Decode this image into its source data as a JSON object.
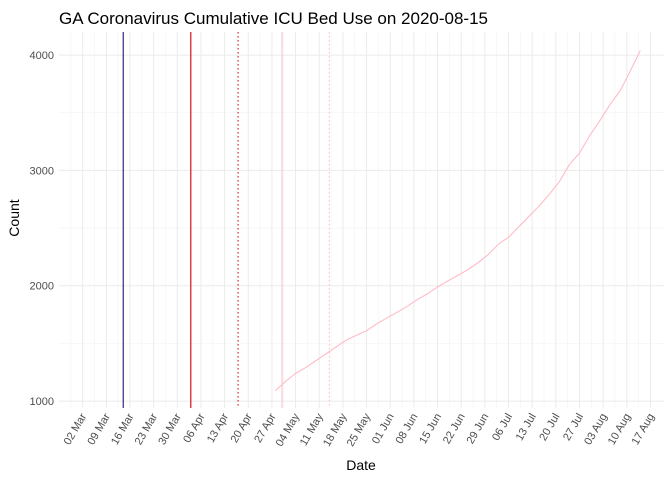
{
  "chart_data": {
    "type": "line",
    "title": "GA Coronavirus Cumulative ICU Bed Use on 2020-08-15",
    "xlabel": "Date",
    "ylabel": "Count",
    "xlim": [
      "2020-02-24",
      "2020-08-21"
    ],
    "ylim": [
      940,
      4200
    ],
    "x_ticks": [
      {
        "date": "2020-03-02",
        "label": "02 Mar"
      },
      {
        "date": "2020-03-09",
        "label": "09 Mar"
      },
      {
        "date": "2020-03-16",
        "label": "16 Mar"
      },
      {
        "date": "2020-03-23",
        "label": "23 Mar"
      },
      {
        "date": "2020-03-30",
        "label": "30 Mar"
      },
      {
        "date": "2020-04-06",
        "label": "06 Apr"
      },
      {
        "date": "2020-04-13",
        "label": "13 Apr"
      },
      {
        "date": "2020-04-20",
        "label": "20 Apr"
      },
      {
        "date": "2020-04-27",
        "label": "27 Apr"
      },
      {
        "date": "2020-05-04",
        "label": "04 May"
      },
      {
        "date": "2020-05-11",
        "label": "11 May"
      },
      {
        "date": "2020-05-18",
        "label": "18 May"
      },
      {
        "date": "2020-05-25",
        "label": "25 May"
      },
      {
        "date": "2020-06-01",
        "label": "01 Jun"
      },
      {
        "date": "2020-06-08",
        "label": "08 Jun"
      },
      {
        "date": "2020-06-15",
        "label": "15 Jun"
      },
      {
        "date": "2020-06-22",
        "label": "22 Jun"
      },
      {
        "date": "2020-06-29",
        "label": "29 Jun"
      },
      {
        "date": "2020-07-06",
        "label": "06 Jul"
      },
      {
        "date": "2020-07-13",
        "label": "13 Jul"
      },
      {
        "date": "2020-07-20",
        "label": "20 Jul"
      },
      {
        "date": "2020-07-27",
        "label": "27 Jul"
      },
      {
        "date": "2020-08-03",
        "label": "03 Aug"
      },
      {
        "date": "2020-08-10",
        "label": "10 Aug"
      },
      {
        "date": "2020-08-17",
        "label": "17 Aug"
      }
    ],
    "y_ticks": [
      1000,
      2000,
      3000,
      4000
    ],
    "grid": true,
    "vlines": [
      {
        "date": "2020-03-14",
        "color": "#191970",
        "style": "solid"
      },
      {
        "date": "2020-04-03",
        "color": "#cc0000",
        "style": "solid"
      },
      {
        "date": "2020-04-17",
        "color": "#cc2222",
        "style": "dotted"
      },
      {
        "date": "2020-04-30",
        "color": "#ffc0cb",
        "style": "solid"
      },
      {
        "date": "2020-05-14",
        "color": "#ffc0cb",
        "style": "dotted"
      }
    ],
    "series": [
      {
        "color": "#ffb6c1",
        "x": [
          "2020-04-28",
          "2020-05-01",
          "2020-05-04",
          "2020-05-07",
          "2020-05-10",
          "2020-05-13",
          "2020-05-16",
          "2020-05-19",
          "2020-05-22",
          "2020-05-25",
          "2020-05-28",
          "2020-05-31",
          "2020-06-03",
          "2020-06-06",
          "2020-06-09",
          "2020-06-12",
          "2020-06-15",
          "2020-06-18",
          "2020-06-21",
          "2020-06-24",
          "2020-06-27",
          "2020-06-30",
          "2020-07-03",
          "2020-07-06",
          "2020-07-09",
          "2020-07-12",
          "2020-07-15",
          "2020-07-18",
          "2020-07-21",
          "2020-07-24",
          "2020-07-27",
          "2020-07-30",
          "2020-08-02",
          "2020-08-05",
          "2020-08-08",
          "2020-08-11",
          "2020-08-14"
        ],
        "y": [
          1090,
          1170,
          1240,
          1290,
          1350,
          1410,
          1470,
          1530,
          1570,
          1610,
          1670,
          1720,
          1770,
          1820,
          1880,
          1930,
          1990,
          2040,
          2090,
          2140,
          2200,
          2270,
          2360,
          2420,
          2510,
          2600,
          2690,
          2790,
          2900,
          3050,
          3150,
          3300,
          3430,
          3570,
          3690,
          3860,
          4040
        ]
      }
    ]
  }
}
